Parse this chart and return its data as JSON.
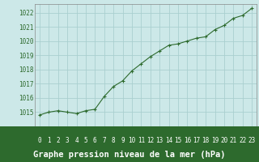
{
  "x": [
    0,
    1,
    2,
    3,
    4,
    5,
    6,
    7,
    8,
    9,
    10,
    11,
    12,
    13,
    14,
    15,
    16,
    17,
    18,
    19,
    20,
    21,
    22,
    23
  ],
  "y": [
    1014.8,
    1015.0,
    1015.1,
    1015.0,
    1014.9,
    1015.1,
    1015.2,
    1016.1,
    1016.8,
    1017.2,
    1017.9,
    1018.4,
    1018.9,
    1019.3,
    1019.7,
    1019.8,
    1020.0,
    1020.2,
    1020.3,
    1020.8,
    1021.1,
    1021.6,
    1021.8,
    1022.3
  ],
  "line_color": "#2d6a2d",
  "marker": "+",
  "plot_bg_color": "#cce8e8",
  "fig_bg_color": "#cce8e8",
  "label_bg_color": "#2d6a2d",
  "grid_color": "#aacfcf",
  "tick_color": "#2d6a2d",
  "xlabel": "Graphe pression niveau de la mer (hPa)",
  "xlabel_color": "#ffffff",
  "ylim": [
    1014.0,
    1022.6
  ],
  "xlim": [
    -0.5,
    23.5
  ],
  "yticks": [
    1015,
    1016,
    1017,
    1018,
    1019,
    1020,
    1021,
    1022
  ],
  "xticks": [
    0,
    1,
    2,
    3,
    4,
    5,
    6,
    7,
    8,
    9,
    10,
    11,
    12,
    13,
    14,
    15,
    16,
    17,
    18,
    19,
    20,
    21,
    22,
    23
  ],
  "tick_label_fontsize": 5.5,
  "xlabel_fontsize": 7.5
}
